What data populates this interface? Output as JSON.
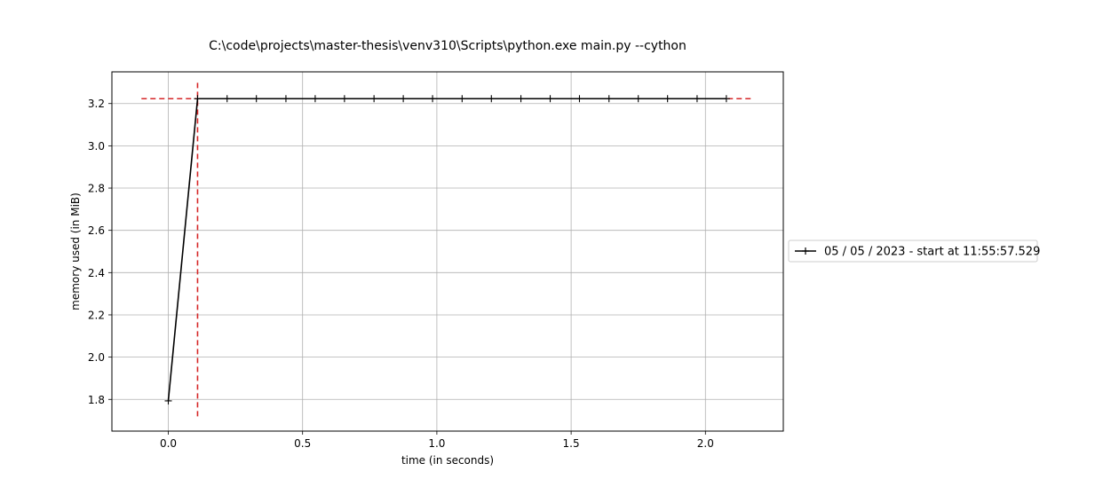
{
  "chart_data": {
    "type": "line",
    "title": "C:\\code\\projects\\master-thesis\\venv310\\Scripts\\python.exe main.py --cython",
    "xlabel": "time (in seconds)",
    "ylabel": "memory used (in MiB)",
    "xlim": [
      -0.21,
      2.29
    ],
    "ylim": [
      1.65,
      3.35
    ],
    "grid": true,
    "legend_position": "center-right outside",
    "x_ticks": [
      0.0,
      0.5,
      1.0,
      1.5,
      2.0
    ],
    "x_tick_labels": [
      "0.0",
      "0.5",
      "1.0",
      "1.5",
      "2.0"
    ],
    "y_ticks": [
      1.8,
      2.0,
      2.2,
      2.4,
      2.6,
      2.8,
      3.0,
      3.2
    ],
    "y_tick_labels": [
      "1.8",
      "2.0",
      "2.2",
      "2.4",
      "2.6",
      "2.8",
      "3.0",
      "3.2"
    ],
    "series": [
      {
        "name": "05 / 05 / 2023 - start at 11:55:57.529",
        "color": "#000000",
        "marker": "+",
        "x": [
          0.0,
          0.109,
          0.219,
          0.328,
          0.438,
          0.547,
          0.656,
          0.766,
          0.875,
          0.984,
          1.094,
          1.203,
          1.313,
          1.422,
          1.531,
          1.641,
          1.75,
          1.859,
          1.969,
          2.078
        ],
        "y": [
          1.793,
          3.223,
          3.223,
          3.223,
          3.223,
          3.223,
          3.223,
          3.223,
          3.223,
          3.223,
          3.223,
          3.223,
          3.223,
          3.223,
          3.223,
          3.223,
          3.223,
          3.223,
          3.223,
          3.223
        ]
      }
    ],
    "annotations": [
      {
        "type": "hline",
        "y": 3.223,
        "x_from": -0.1,
        "x_to": 2.18,
        "color": "#d62728",
        "style": "dashed"
      },
      {
        "type": "vline",
        "x": 0.109,
        "y_from": 1.72,
        "y_to": 3.3,
        "color": "#d62728",
        "style": "dashed"
      }
    ]
  }
}
